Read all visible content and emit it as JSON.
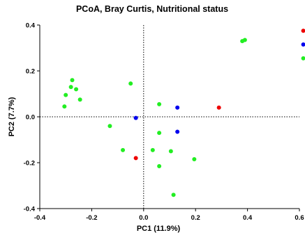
{
  "chart_data": {
    "type": "scatter",
    "title": "PCoA, Bray Curtis, Nutritional status",
    "xlabel": "PC1 (11.9%)",
    "ylabel": "PC2 (7.7%)",
    "xlim": [
      -0.4,
      0.6
    ],
    "ylim": [
      -0.4,
      0.4
    ],
    "xticks": [
      -0.4,
      -0.2,
      0.0,
      0.2,
      0.4,
      0.6
    ],
    "yticks": [
      -0.4,
      -0.2,
      0.0,
      0.2,
      0.4
    ],
    "xtick_labels": [
      "-0.4",
      "-0.2",
      "0.0",
      "0.2",
      "0.4",
      "0.6"
    ],
    "ytick_labels": [
      "-0.4",
      "-0.2",
      "0.0",
      "0.2",
      "0.4"
    ],
    "reference_lines": {
      "x": 0,
      "y": 0,
      "style": "dotted"
    },
    "grid": false,
    "legend": "none",
    "series": [
      {
        "color": "#22ee22",
        "points": [
          [
            -0.275,
            0.16
          ],
          [
            -0.28,
            0.13
          ],
          [
            -0.26,
            0.12
          ],
          [
            -0.3,
            0.095
          ],
          [
            -0.245,
            0.075
          ],
          [
            -0.305,
            0.045
          ],
          [
            -0.05,
            0.145
          ],
          [
            0.06,
            0.055
          ],
          [
            -0.13,
            -0.04
          ],
          [
            0.06,
            -0.07
          ],
          [
            -0.08,
            -0.145
          ],
          [
            0.035,
            -0.145
          ],
          [
            0.105,
            -0.15
          ],
          [
            0.06,
            -0.215
          ],
          [
            0.195,
            -0.185
          ],
          [
            0.115,
            -0.34
          ],
          [
            0.38,
            0.33
          ],
          [
            0.39,
            0.335
          ],
          [
            0.615,
            0.255
          ]
        ]
      },
      {
        "color": "#0000ee",
        "points": [
          [
            -0.03,
            -0.005
          ],
          [
            0.13,
            0.04
          ],
          [
            0.13,
            -0.065
          ],
          [
            0.615,
            0.315
          ]
        ]
      },
      {
        "color": "#ee0000",
        "points": [
          [
            -0.03,
            -0.18
          ],
          [
            0.29,
            0.04
          ],
          [
            0.615,
            0.375
          ]
        ]
      }
    ]
  }
}
